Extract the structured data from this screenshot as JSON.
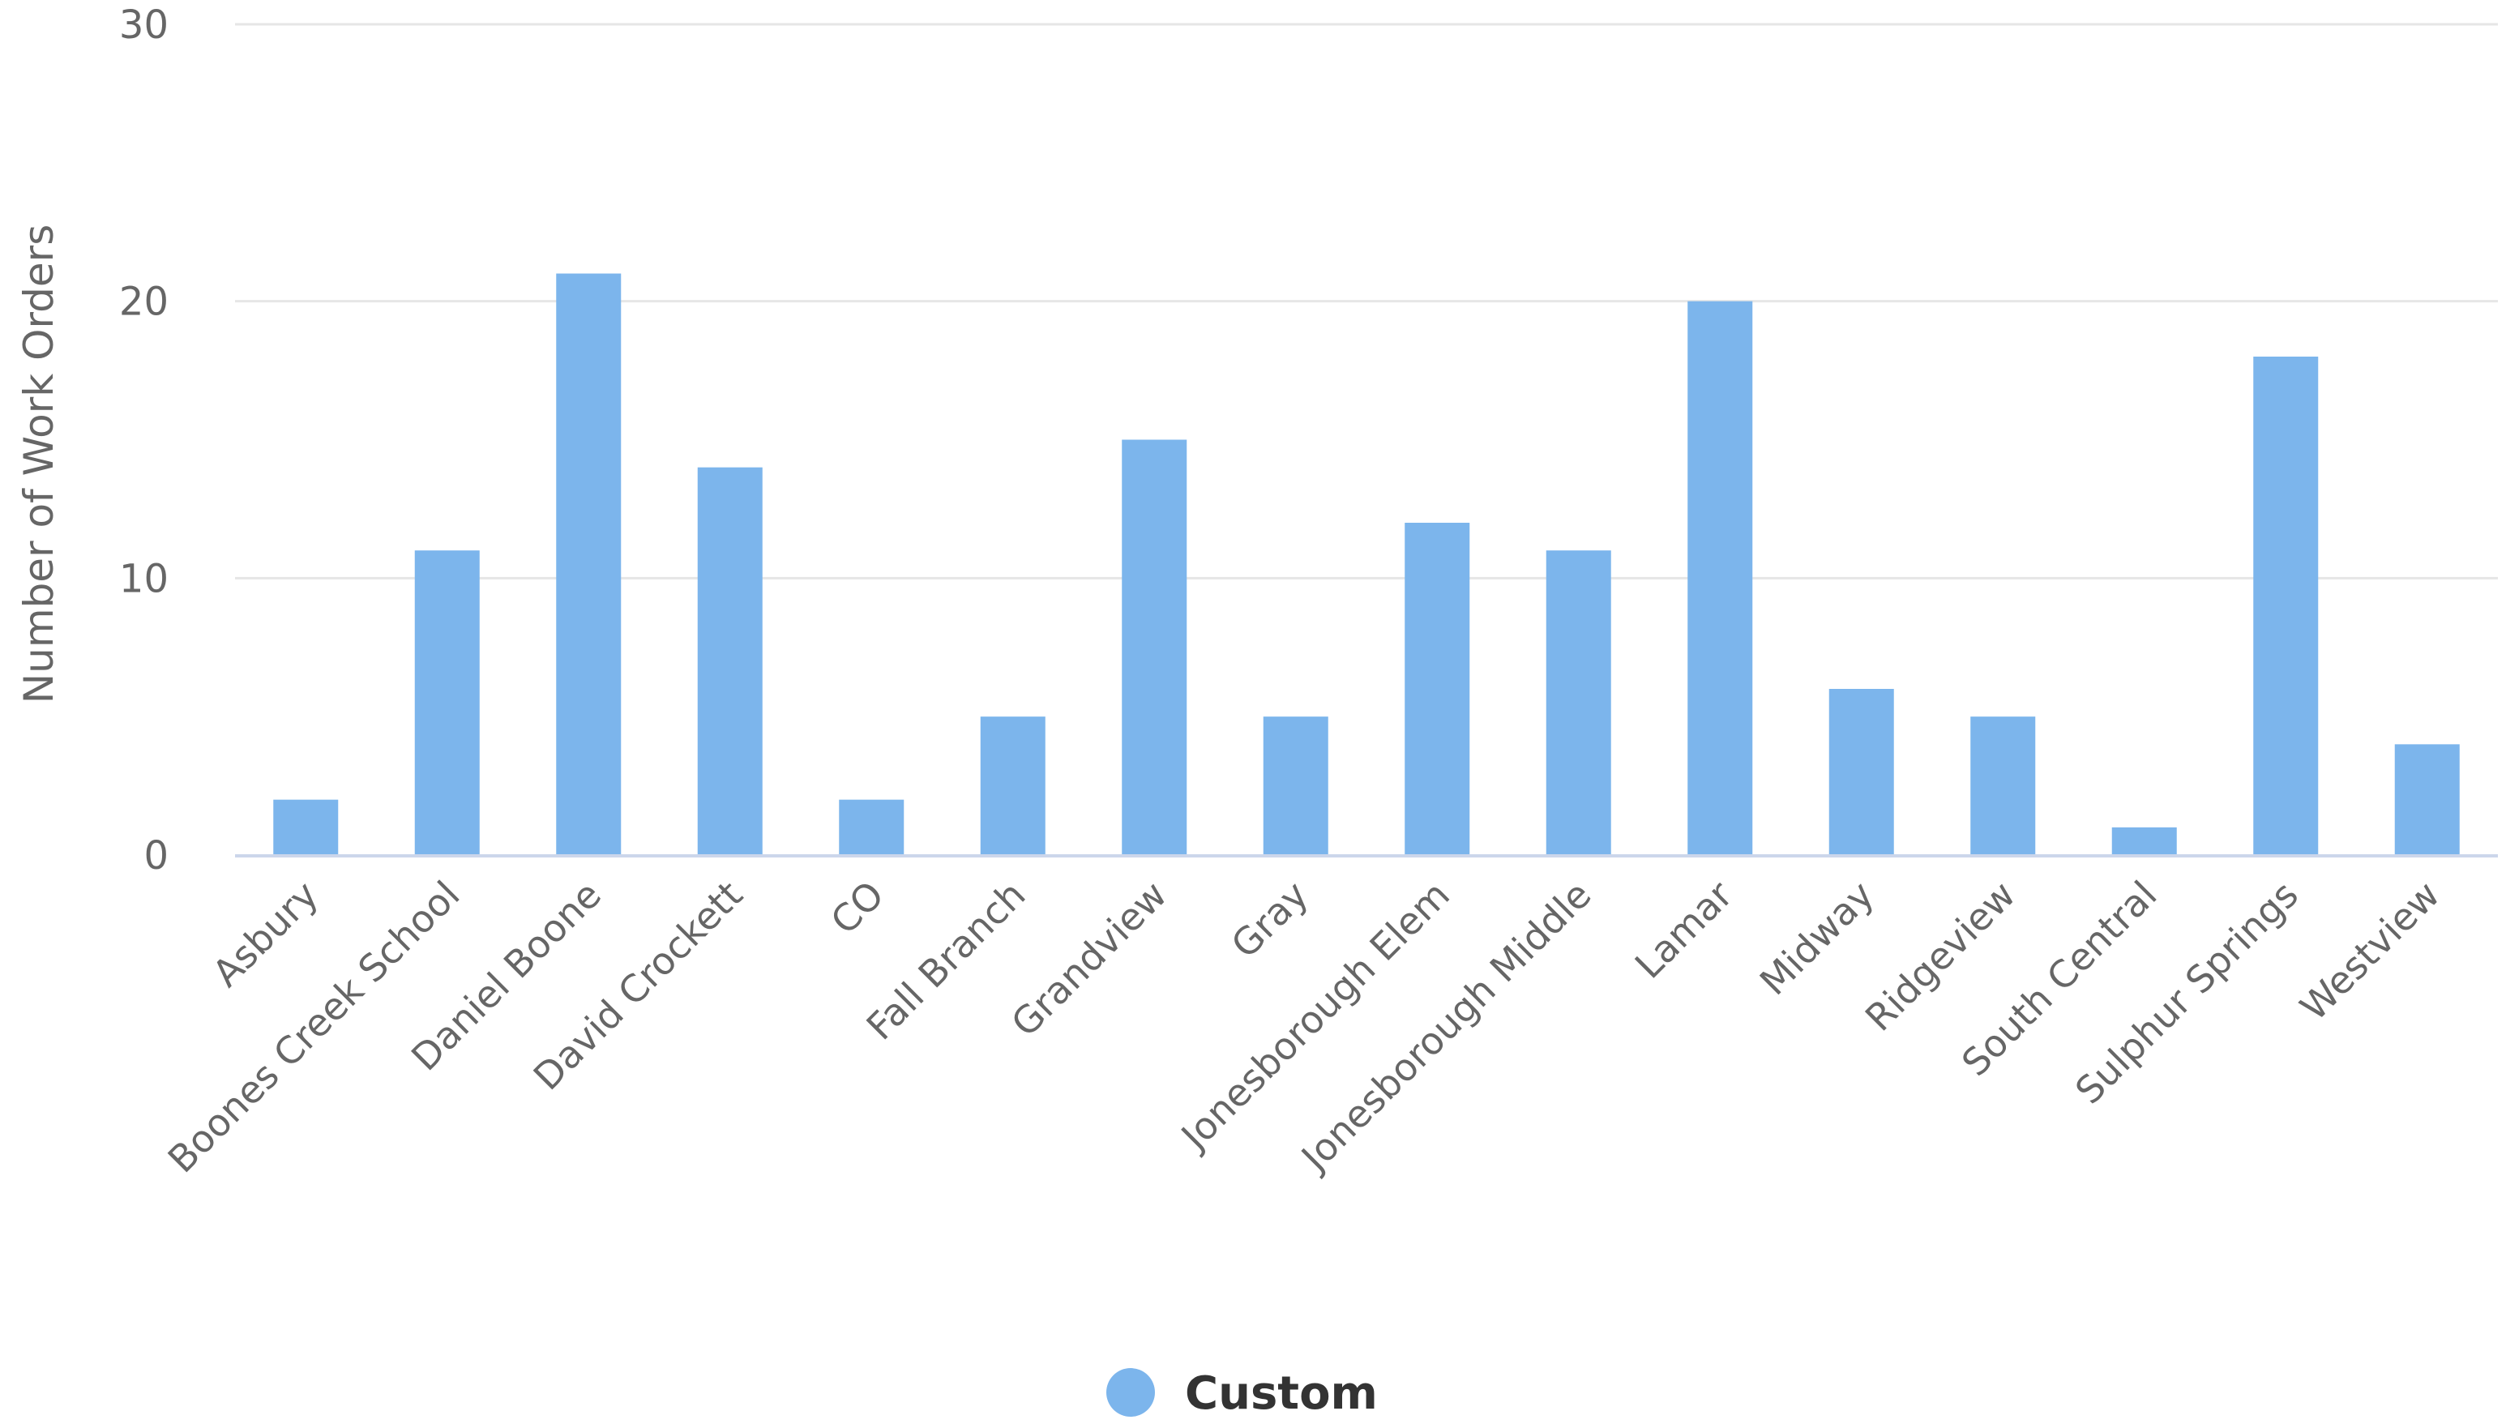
{
  "chart_data": {
    "type": "bar",
    "categories": [
      "Asbury",
      "Boones Creek School",
      "Daniel Boone",
      "David Crockett",
      "CO",
      "Fall Branch",
      "Grandview",
      "Gray",
      "Jonesborough Elem",
      "Jonesborough Middle",
      "Lamar",
      "Midway",
      "Ridgeview",
      "South Central",
      "Sulphur Springs",
      "Westview"
    ],
    "series": [
      {
        "name": "Custom",
        "values": [
          2,
          11,
          21,
          14,
          2,
          5,
          15,
          5,
          12,
          11,
          20,
          6,
          5,
          1,
          18,
          4
        ]
      }
    ],
    "ylabel": "Number of Work Orders",
    "ylim": [
      0,
      30
    ],
    "yticks": [
      "0",
      "10",
      "20",
      "30"
    ],
    "grid": true,
    "legend_position": "bottom-center",
    "colors": {
      "bar": "#7cb5ec",
      "grid": "#e6e6e6",
      "axis": "#ccd6eb",
      "text": "#666666",
      "legend_text": "#333333"
    }
  }
}
